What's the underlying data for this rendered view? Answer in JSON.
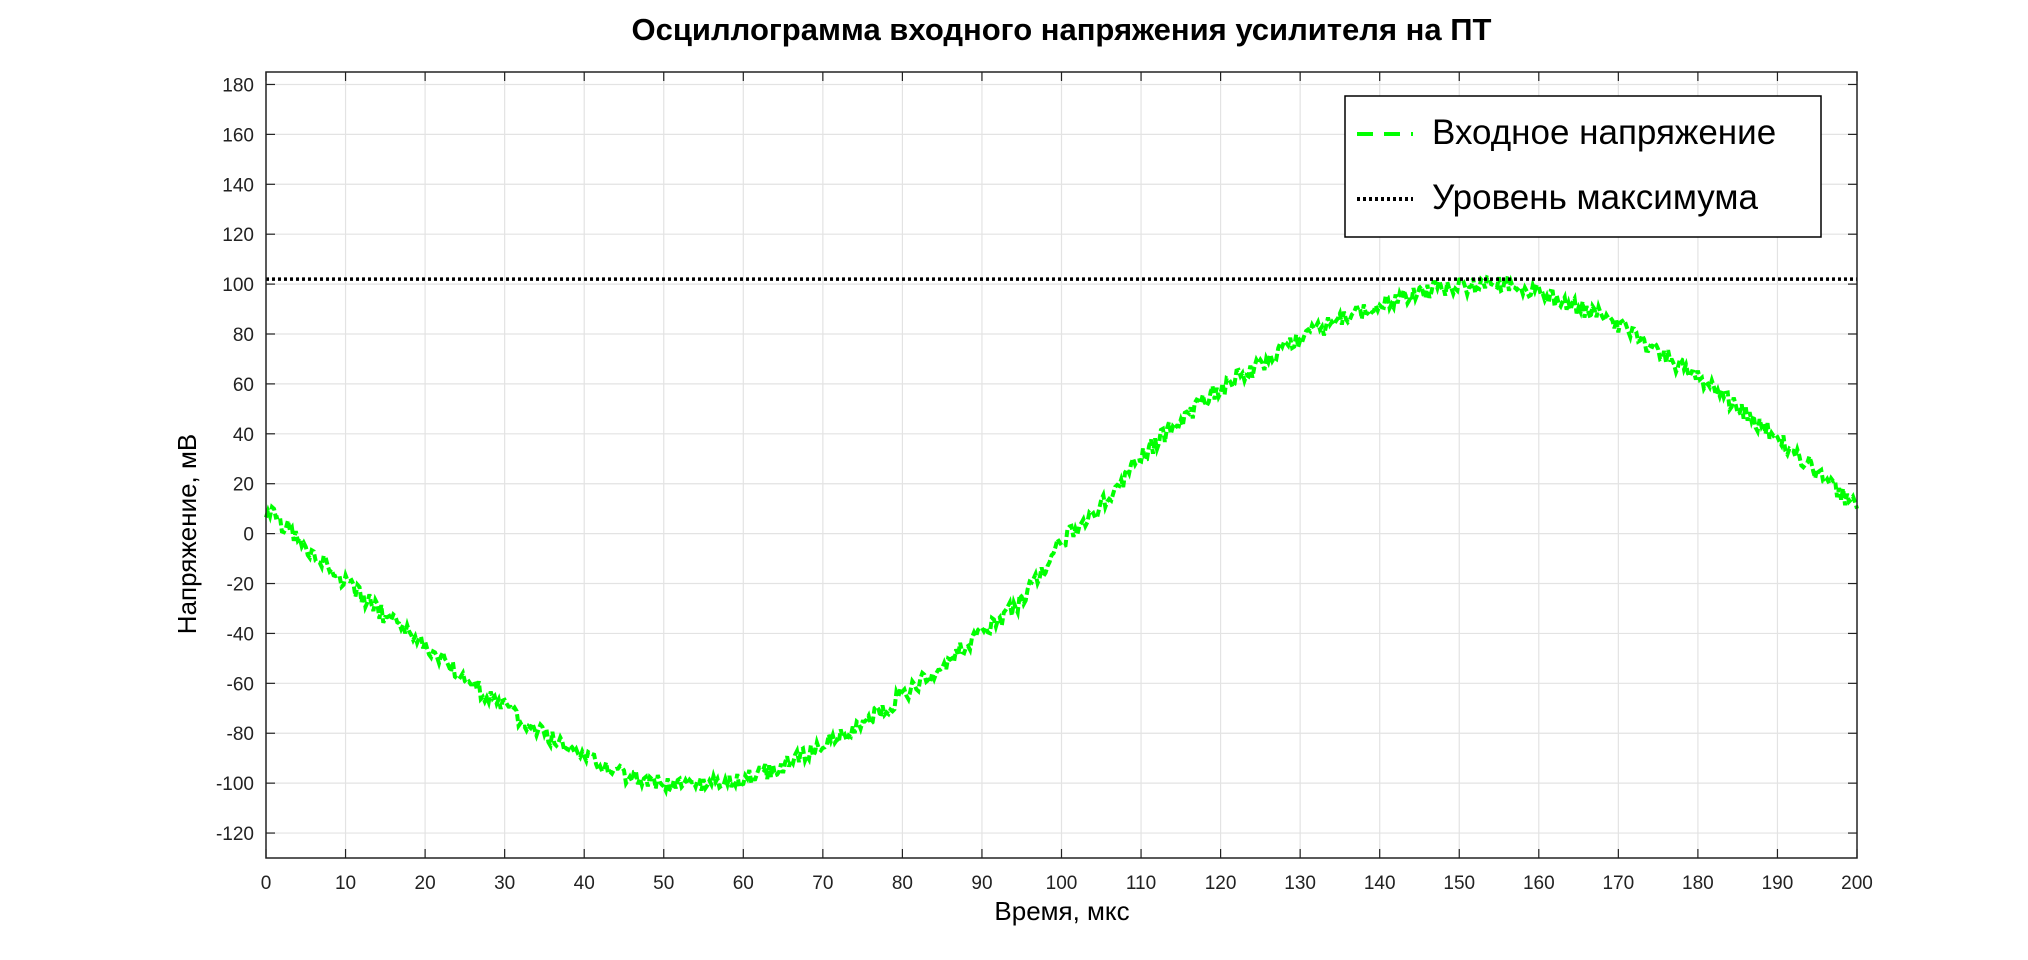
{
  "chart_data": {
    "type": "line",
    "title": "Осциллограмма входного напряжения усилителя на ПТ",
    "xlabel": "Время, мкс",
    "ylabel": "Напряжение, мВ",
    "xlim": [
      0,
      200
    ],
    "ylim": [
      -130,
      185
    ],
    "xticks": [
      0,
      10,
      20,
      30,
      40,
      50,
      60,
      70,
      80,
      90,
      100,
      110,
      120,
      130,
      140,
      150,
      160,
      170,
      180,
      190,
      200
    ],
    "yticks": [
      -120,
      -100,
      -80,
      -60,
      -40,
      -20,
      0,
      20,
      40,
      60,
      80,
      100,
      120,
      140,
      160,
      180
    ],
    "grid": true,
    "legend_position": "top-right",
    "series": [
      {
        "name": "Входное напряжение",
        "style": "dashed",
        "color": "#00ff00",
        "x": [
          0,
          5,
          10,
          15,
          20,
          25,
          30,
          35,
          40,
          45,
          50,
          55,
          60,
          65,
          70,
          75,
          80,
          85,
          90,
          95,
          100,
          105,
          110,
          115,
          120,
          125,
          130,
          135,
          140,
          145,
          150,
          155,
          160,
          165,
          170,
          175,
          180,
          185,
          190,
          195,
          200
        ],
        "y": [
          10,
          -5,
          -20,
          -33,
          -45,
          -58,
          -70,
          -81,
          -90,
          -97,
          -100,
          -101,
          -98,
          -93,
          -85,
          -76,
          -65,
          -53,
          -40,
          -27,
          -3,
          11,
          31,
          46,
          58,
          68,
          78,
          86,
          92,
          97,
          99,
          100,
          96,
          91,
          84,
          73,
          62,
          51,
          38,
          25,
          10
        ]
      },
      {
        "name": "Уровень максимума",
        "style": "dotted",
        "color": "#000000",
        "x": [
          0,
          200
        ],
        "y": [
          102,
          102
        ]
      }
    ]
  }
}
